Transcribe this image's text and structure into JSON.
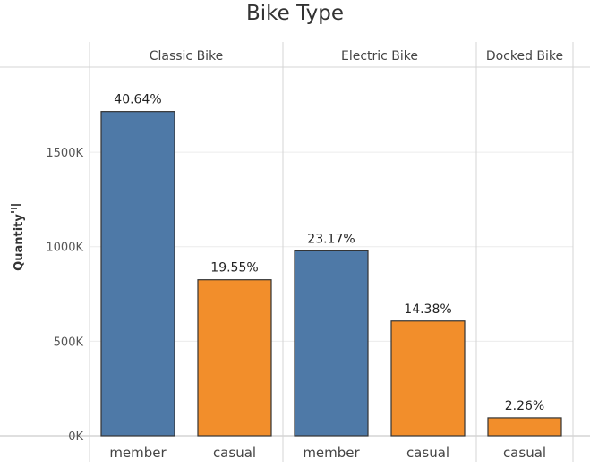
{
  "chart_data": {
    "type": "bar",
    "title": "Bike Type",
    "ylabel": "Quantity",
    "xlabel": "",
    "ylim": [
      0,
      1950000
    ],
    "yticks": [
      0,
      500000,
      1000000,
      1500000
    ],
    "ytick_labels": [
      "0K",
      "500K",
      "1000K",
      "1500K"
    ],
    "grid": true,
    "panels": [
      {
        "name": "Classic Bike",
        "bars": [
          {
            "category": "member",
            "value": 1715000,
            "label": "40.64%",
            "color": "#4e79a7"
          },
          {
            "category": "casual",
            "value": 825000,
            "label": "19.55%",
            "color": "#f28e2b"
          }
        ]
      },
      {
        "name": "Electric Bike",
        "bars": [
          {
            "category": "member",
            "value": 978000,
            "label": "23.17%",
            "color": "#4e79a7"
          },
          {
            "category": "casual",
            "value": 607000,
            "label": "14.38%",
            "color": "#f28e2b"
          }
        ]
      },
      {
        "name": "Docked Bike",
        "bars": [
          {
            "category": "casual",
            "value": 95000,
            "label": "2.26%",
            "color": "#f28e2b"
          }
        ]
      }
    ]
  }
}
